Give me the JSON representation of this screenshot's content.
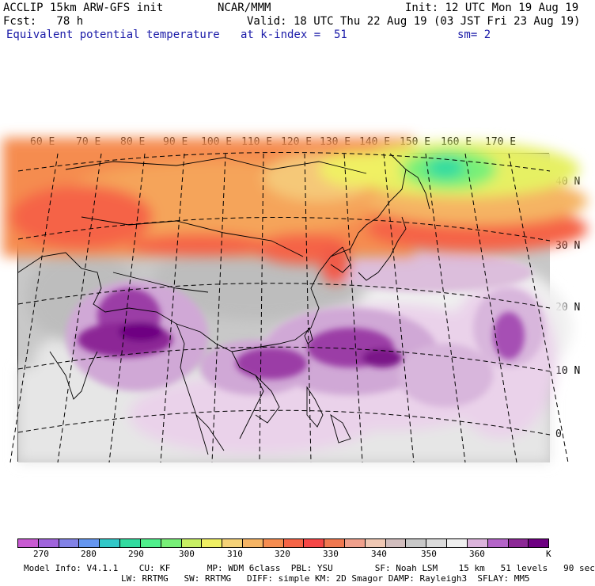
{
  "header": {
    "line1_left": "ACCLIP 15km ARW-GFS init",
    "line1_center": "NCAR/MMM",
    "line1_right": "Init: 12 UTC Mon 19 Aug 19",
    "fcst": "Fcst:   78 h",
    "valid": "Valid: 18 UTC Thu 22 Aug 19 (03 JST Fri 23 Aug 19)",
    "field": "Equivalent potential temperature",
    "level": "at k-index =  51",
    "smooth": "sm= 2"
  },
  "map": {
    "lon_labels": [
      "60 E",
      "70 E",
      "80 E",
      "90 E",
      "100 E",
      "110 E",
      "120 E",
      "130 E",
      "140 E",
      "150 E",
      "160 E",
      "170 E"
    ],
    "lat_labels": [
      "40 N",
      "30 N",
      "20 N",
      "10 N",
      "0"
    ]
  },
  "colorbar": {
    "colors": [
      "#c85ad2",
      "#a064dc",
      "#8282e6",
      "#6496f0",
      "#32c8c8",
      "#32dca0",
      "#50f08c",
      "#78f078",
      "#c8f064",
      "#f0f064",
      "#f5d278",
      "#f5b464",
      "#f58c50",
      "#f56446",
      "#f54646",
      "#f07850",
      "#f0a08c",
      "#f0c8b4",
      "#d2bebe",
      "#c8c8c8",
      "#dcdcdc",
      "#f0f0f0",
      "#dcb4dc",
      "#b464c8",
      "#8c2896",
      "#6e0082"
    ],
    "labels": [
      "270",
      "280",
      "290",
      "300",
      "310",
      "320",
      "330",
      "340",
      "350",
      "360"
    ],
    "unit": "K"
  },
  "footer": {
    "line1": "Model Info: V4.1.1    CU: KF       MP: WDM 6class  PBL: YSU        SF: Noah LSM    15 km   51 levels   90 sec",
    "line2": "LW: RRTMG   SW: RRTMG   DIFF: simple KM: 2D Smagor DAMP: Rayleigh3  SFLAY: MM5"
  }
}
